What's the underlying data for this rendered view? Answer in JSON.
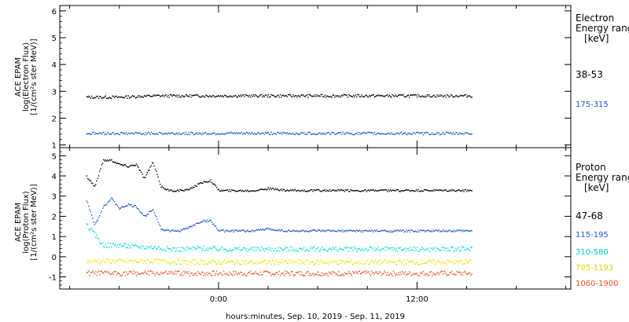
{
  "chart_data": [
    {
      "type": "scatter",
      "panel": "electron",
      "ylabel_lines": [
        "ACE EPAM",
        "log(Electron Flux)",
        "[1/(cm²s ster MeV)]"
      ],
      "ylim": [
        0.9,
        6.2
      ],
      "yticks": [
        1,
        2,
        3,
        4,
        5,
        6
      ],
      "legend_title": [
        "Electron",
        "Energy range"
      ],
      "legend_unit": "[keV]",
      "series": [
        {
          "name": "38-53",
          "color": "#000000",
          "x": [
            -8,
            -6,
            -4,
            -2,
            0,
            2,
            4,
            6,
            8,
            10,
            12,
            14,
            15.3
          ],
          "y": [
            2.8,
            2.8,
            2.85,
            2.85,
            2.85,
            2.85,
            2.85,
            2.85,
            2.85,
            2.85,
            2.85,
            2.85,
            2.85
          ]
        },
        {
          "name": "175-315",
          "color": "#1f55c8",
          "x": [
            -8,
            -6,
            -4,
            -2,
            0,
            2,
            4,
            6,
            8,
            10,
            12,
            14,
            15.3
          ],
          "y": [
            1.45,
            1.45,
            1.45,
            1.45,
            1.45,
            1.45,
            1.45,
            1.45,
            1.45,
            1.45,
            1.45,
            1.45,
            1.45
          ]
        }
      ]
    },
    {
      "type": "scatter",
      "panel": "proton",
      "ylabel_lines": [
        "ACE EPAM",
        "log(Proton Flux)",
        "[1/(cm²s ster MeV)]"
      ],
      "ylim": [
        -1.6,
        5.4
      ],
      "yticks": [
        -1,
        0,
        1,
        2,
        3,
        4,
        5
      ],
      "legend_title": [
        "Proton",
        "Energy range"
      ],
      "legend_unit": "[keV]",
      "series": [
        {
          "name": "47-68",
          "color": "#000000",
          "x": [
            -8,
            -7.5,
            -7,
            -6.5,
            -6,
            -5.5,
            -5,
            -4.5,
            -4,
            -3.5,
            -3,
            -2.5,
            -2,
            -1.5,
            -1,
            -0.5,
            0,
            1,
            2,
            3,
            4,
            6,
            8,
            10,
            12,
            14,
            15.3
          ],
          "y": [
            4.0,
            3.5,
            4.8,
            4.8,
            4.6,
            4.5,
            4.6,
            3.9,
            4.7,
            3.5,
            3.3,
            3.3,
            3.3,
            3.5,
            3.7,
            3.8,
            3.3,
            3.3,
            3.3,
            3.4,
            3.3,
            3.3,
            3.3,
            3.3,
            3.3,
            3.3,
            3.3
          ]
        },
        {
          "name": "115-195",
          "color": "#1f55c8",
          "x": [
            -8,
            -7.5,
            -7,
            -6.5,
            -6,
            -5.5,
            -5,
            -4.5,
            -4,
            -3.5,
            -3,
            -2.5,
            -2,
            -1.5,
            -1,
            -0.5,
            0,
            1,
            2,
            3,
            4,
            6,
            8,
            10,
            12,
            14,
            15.3
          ],
          "y": [
            2.8,
            1.6,
            2.5,
            2.9,
            2.4,
            2.6,
            2.5,
            2.0,
            2.4,
            1.4,
            1.3,
            1.3,
            1.4,
            1.6,
            1.8,
            1.8,
            1.3,
            1.3,
            1.3,
            1.4,
            1.3,
            1.3,
            1.3,
            1.3,
            1.3,
            1.3,
            1.3
          ]
        },
        {
          "name": "310-580",
          "color": "#00dcdc",
          "x": [
            -8,
            -7,
            -6,
            -5,
            -4,
            -3,
            -2,
            -1,
            0,
            2,
            4,
            6,
            8,
            10,
            12,
            14,
            15.3
          ],
          "y": [
            1.6,
            0.6,
            0.6,
            0.5,
            0.5,
            0.4,
            0.4,
            0.45,
            0.4,
            0.4,
            0.4,
            0.4,
            0.4,
            0.4,
            0.4,
            0.4,
            0.4
          ]
        },
        {
          "name": "795-1193",
          "color": "#e6e600",
          "x": [
            -8,
            -6,
            -4,
            -2,
            0,
            2,
            4,
            6,
            8,
            10,
            12,
            14,
            15.3
          ],
          "y": [
            -0.2,
            -0.2,
            -0.2,
            -0.25,
            -0.25,
            -0.25,
            -0.25,
            -0.25,
            -0.25,
            -0.25,
            -0.25,
            -0.25,
            -0.25
          ]
        },
        {
          "name": "1060-1900",
          "color": "#e8501e",
          "x": [
            -8,
            -6,
            -4,
            -2,
            0,
            2,
            4,
            6,
            8,
            10,
            12,
            14,
            15.3
          ],
          "y": [
            -0.8,
            -0.8,
            -0.8,
            -0.8,
            -0.8,
            -0.8,
            -0.8,
            -0.8,
            -0.8,
            -0.8,
            -0.8,
            -0.8,
            -0.8
          ]
        }
      ]
    }
  ],
  "x_axis": {
    "xlim": [
      -9.6,
      21.3
    ],
    "xticks": [
      0,
      12
    ],
    "tick_labels": [
      "0:00",
      "12:00"
    ],
    "minor_tick_step": 3,
    "xlabel": "hours:minutes, Sep. 10, 2019 - Sep. 11, 2019"
  }
}
